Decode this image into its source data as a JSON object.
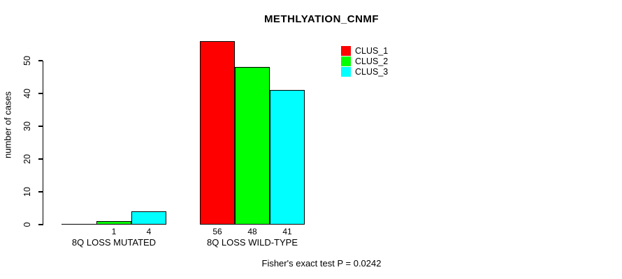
{
  "chart_data": {
    "type": "bar",
    "title": "METHLYATION_CNMF",
    "xlabel": "",
    "ylabel": "number of cases",
    "categories": [
      "8Q LOSS MUTATED",
      "8Q LOSS WILD-TYPE"
    ],
    "series": [
      {
        "name": "CLUS_1",
        "color": "#ff0000",
        "values": [
          0,
          56
        ],
        "labels": [
          "",
          "56"
        ]
      },
      {
        "name": "CLUS_2",
        "color": "#00ff00",
        "values": [
          1,
          48
        ],
        "labels": [
          "1",
          "48"
        ]
      },
      {
        "name": "CLUS_3",
        "color": "#00ffff",
        "values": [
          4,
          41
        ],
        "labels": [
          "4",
          "41"
        ]
      }
    ],
    "yticks": [
      0,
      10,
      20,
      30,
      40,
      50
    ],
    "ylim": [
      0,
      56
    ],
    "grid": false,
    "legend": {
      "position": "top-right",
      "entries": [
        {
          "label": "CLUS_1",
          "color": "#ff0000"
        },
        {
          "label": "CLUS_2",
          "color": "#00ff00"
        },
        {
          "label": "CLUS_3",
          "color": "#00ffff"
        }
      ]
    },
    "annotation": "Fisher's exact test P = 0.0242",
    "colors": {
      "axis": "#000000",
      "bar_border": "#000000",
      "text": "#000000",
      "background": "#ffffff"
    }
  }
}
